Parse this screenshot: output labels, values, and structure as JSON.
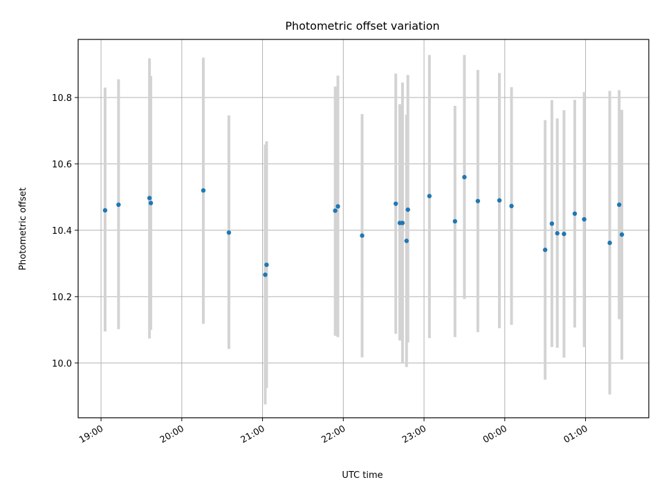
{
  "chart_data": {
    "type": "scatter",
    "title": "Photometric offset variation",
    "xlabel": "UTC time",
    "ylabel": "Photometric offset",
    "x_is_time": true,
    "xlim": [
      "18:43",
      "01:47"
    ],
    "ylim": [
      9.835,
      10.975
    ],
    "xticks": [
      "19:00",
      "20:00",
      "21:00",
      "22:00",
      "23:00",
      "00:00",
      "01:00"
    ],
    "yticks": [
      10.0,
      10.2,
      10.4,
      10.6,
      10.8
    ],
    "ytick_labels": [
      "10.0",
      "10.2",
      "10.4",
      "10.6",
      "10.8"
    ],
    "grid": true,
    "colors": {
      "marker": "#1f77b4",
      "errorbar": "#d3d3d3",
      "grid": "#b0b0b0"
    },
    "series": [
      {
        "points": [
          {
            "x": "19:03",
            "y": 10.46,
            "yerr_low": 10.095,
            "yerr_high": 10.83
          },
          {
            "x": "19:13",
            "y": 10.477,
            "yerr_low": 10.102,
            "yerr_high": 10.855
          },
          {
            "x": "19:36",
            "y": 10.497,
            "yerr_low": 10.074,
            "yerr_high": 10.918
          },
          {
            "x": "19:37",
            "y": 10.482,
            "yerr_low": 10.1,
            "yerr_high": 10.865
          },
          {
            "x": "20:16",
            "y": 10.52,
            "yerr_low": 10.118,
            "yerr_high": 10.92
          },
          {
            "x": "20:35",
            "y": 10.393,
            "yerr_low": 10.042,
            "yerr_high": 10.746
          },
          {
            "x": "21:02",
            "y": 10.266,
            "yerr_low": 9.875,
            "yerr_high": 10.658
          },
          {
            "x": "21:03",
            "y": 10.296,
            "yerr_low": 9.925,
            "yerr_high": 10.668
          },
          {
            "x": "21:54",
            "y": 10.459,
            "yerr_low": 10.082,
            "yerr_high": 10.833
          },
          {
            "x": "21:56",
            "y": 10.472,
            "yerr_low": 10.078,
            "yerr_high": 10.866
          },
          {
            "x": "22:14",
            "y": 10.384,
            "yerr_low": 10.017,
            "yerr_high": 10.75
          },
          {
            "x": "22:39",
            "y": 10.48,
            "yerr_low": 10.088,
            "yerr_high": 10.872
          },
          {
            "x": "22:42",
            "y": 10.422,
            "yerr_low": 10.068,
            "yerr_high": 10.78
          },
          {
            "x": "22:44",
            "y": 10.422,
            "yerr_low": 10.0,
            "yerr_high": 10.845
          },
          {
            "x": "22:47",
            "y": 10.368,
            "yerr_low": 9.988,
            "yerr_high": 10.748
          },
          {
            "x": "22:48",
            "y": 10.462,
            "yerr_low": 10.062,
            "yerr_high": 10.868
          },
          {
            "x": "23:04",
            "y": 10.503,
            "yerr_low": 10.075,
            "yerr_high": 10.928
          },
          {
            "x": "23:23",
            "y": 10.427,
            "yerr_low": 10.078,
            "yerr_high": 10.775
          },
          {
            "x": "23:30",
            "y": 10.56,
            "yerr_low": 10.193,
            "yerr_high": 10.928
          },
          {
            "x": "23:40",
            "y": 10.488,
            "yerr_low": 10.093,
            "yerr_high": 10.883
          },
          {
            "x": "23:56",
            "y": 10.49,
            "yerr_low": 10.105,
            "yerr_high": 10.874
          },
          {
            "x": "00:05",
            "y": 10.473,
            "yerr_low": 10.115,
            "yerr_high": 10.831
          },
          {
            "x": "00:30",
            "y": 10.341,
            "yerr_low": 9.95,
            "yerr_high": 10.732
          },
          {
            "x": "00:35",
            "y": 10.42,
            "yerr_low": 10.048,
            "yerr_high": 10.792
          },
          {
            "x": "00:39",
            "y": 10.391,
            "yerr_low": 10.046,
            "yerr_high": 10.737
          },
          {
            "x": "00:44",
            "y": 10.389,
            "yerr_low": 10.016,
            "yerr_high": 10.762
          },
          {
            "x": "00:52",
            "y": 10.45,
            "yerr_low": 10.107,
            "yerr_high": 10.793
          },
          {
            "x": "00:59",
            "y": 10.433,
            "yerr_low": 10.048,
            "yerr_high": 10.816
          },
          {
            "x": "01:18",
            "y": 10.362,
            "yerr_low": 9.905,
            "yerr_high": 10.82
          },
          {
            "x": "01:25",
            "y": 10.477,
            "yerr_low": 10.132,
            "yerr_high": 10.822
          },
          {
            "x": "01:27",
            "y": 10.387,
            "yerr_low": 10.01,
            "yerr_high": 10.763
          }
        ]
      }
    ]
  }
}
